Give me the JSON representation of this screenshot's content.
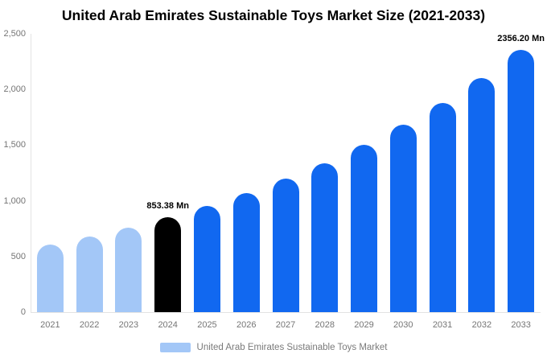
{
  "title": "United Arab Emirates Sustainable Toys Market Size (2021-2033)",
  "legend": {
    "label": "United Arab Emirates Sustainable Toys Market"
  },
  "colors": {
    "past": "#a3c7f7",
    "current": "#000000",
    "forecast": "#1168f0",
    "axis": "#e3e3e3",
    "tick_text": "#757575"
  },
  "chart_data": {
    "type": "bar",
    "title": "United Arab Emirates Sustainable Toys Market Size (2021-2033)",
    "categories": [
      "2021",
      "2022",
      "2023",
      "2024",
      "2025",
      "2026",
      "2027",
      "2028",
      "2029",
      "2030",
      "2031",
      "2032",
      "2033"
    ],
    "values": [
      608,
      681,
      762,
      853.38,
      955,
      1070,
      1197,
      1340,
      1500,
      1680,
      1880,
      2105,
      2356.2
    ],
    "unit": "Mn",
    "xlabel": "",
    "ylabel": "",
    "ylim": [
      0,
      2500
    ],
    "yticks": [
      0,
      500,
      1000,
      1500,
      2000,
      2500
    ],
    "ytick_labels": [
      "0",
      "500",
      "1,000",
      "1,500",
      "2,000",
      "2,500"
    ],
    "color_roles": [
      "past",
      "past",
      "past",
      "current",
      "forecast",
      "forecast",
      "forecast",
      "forecast",
      "forecast",
      "forecast",
      "forecast",
      "forecast",
      "forecast"
    ],
    "annotations": [
      {
        "category": "2024",
        "text": "853.38 Mn"
      },
      {
        "category": "2033",
        "text": "2356.20 Mn"
      }
    ],
    "grid": false,
    "legend_position": "bottom",
    "legend_entries": [
      "United Arab Emirates Sustainable Toys Market"
    ]
  }
}
